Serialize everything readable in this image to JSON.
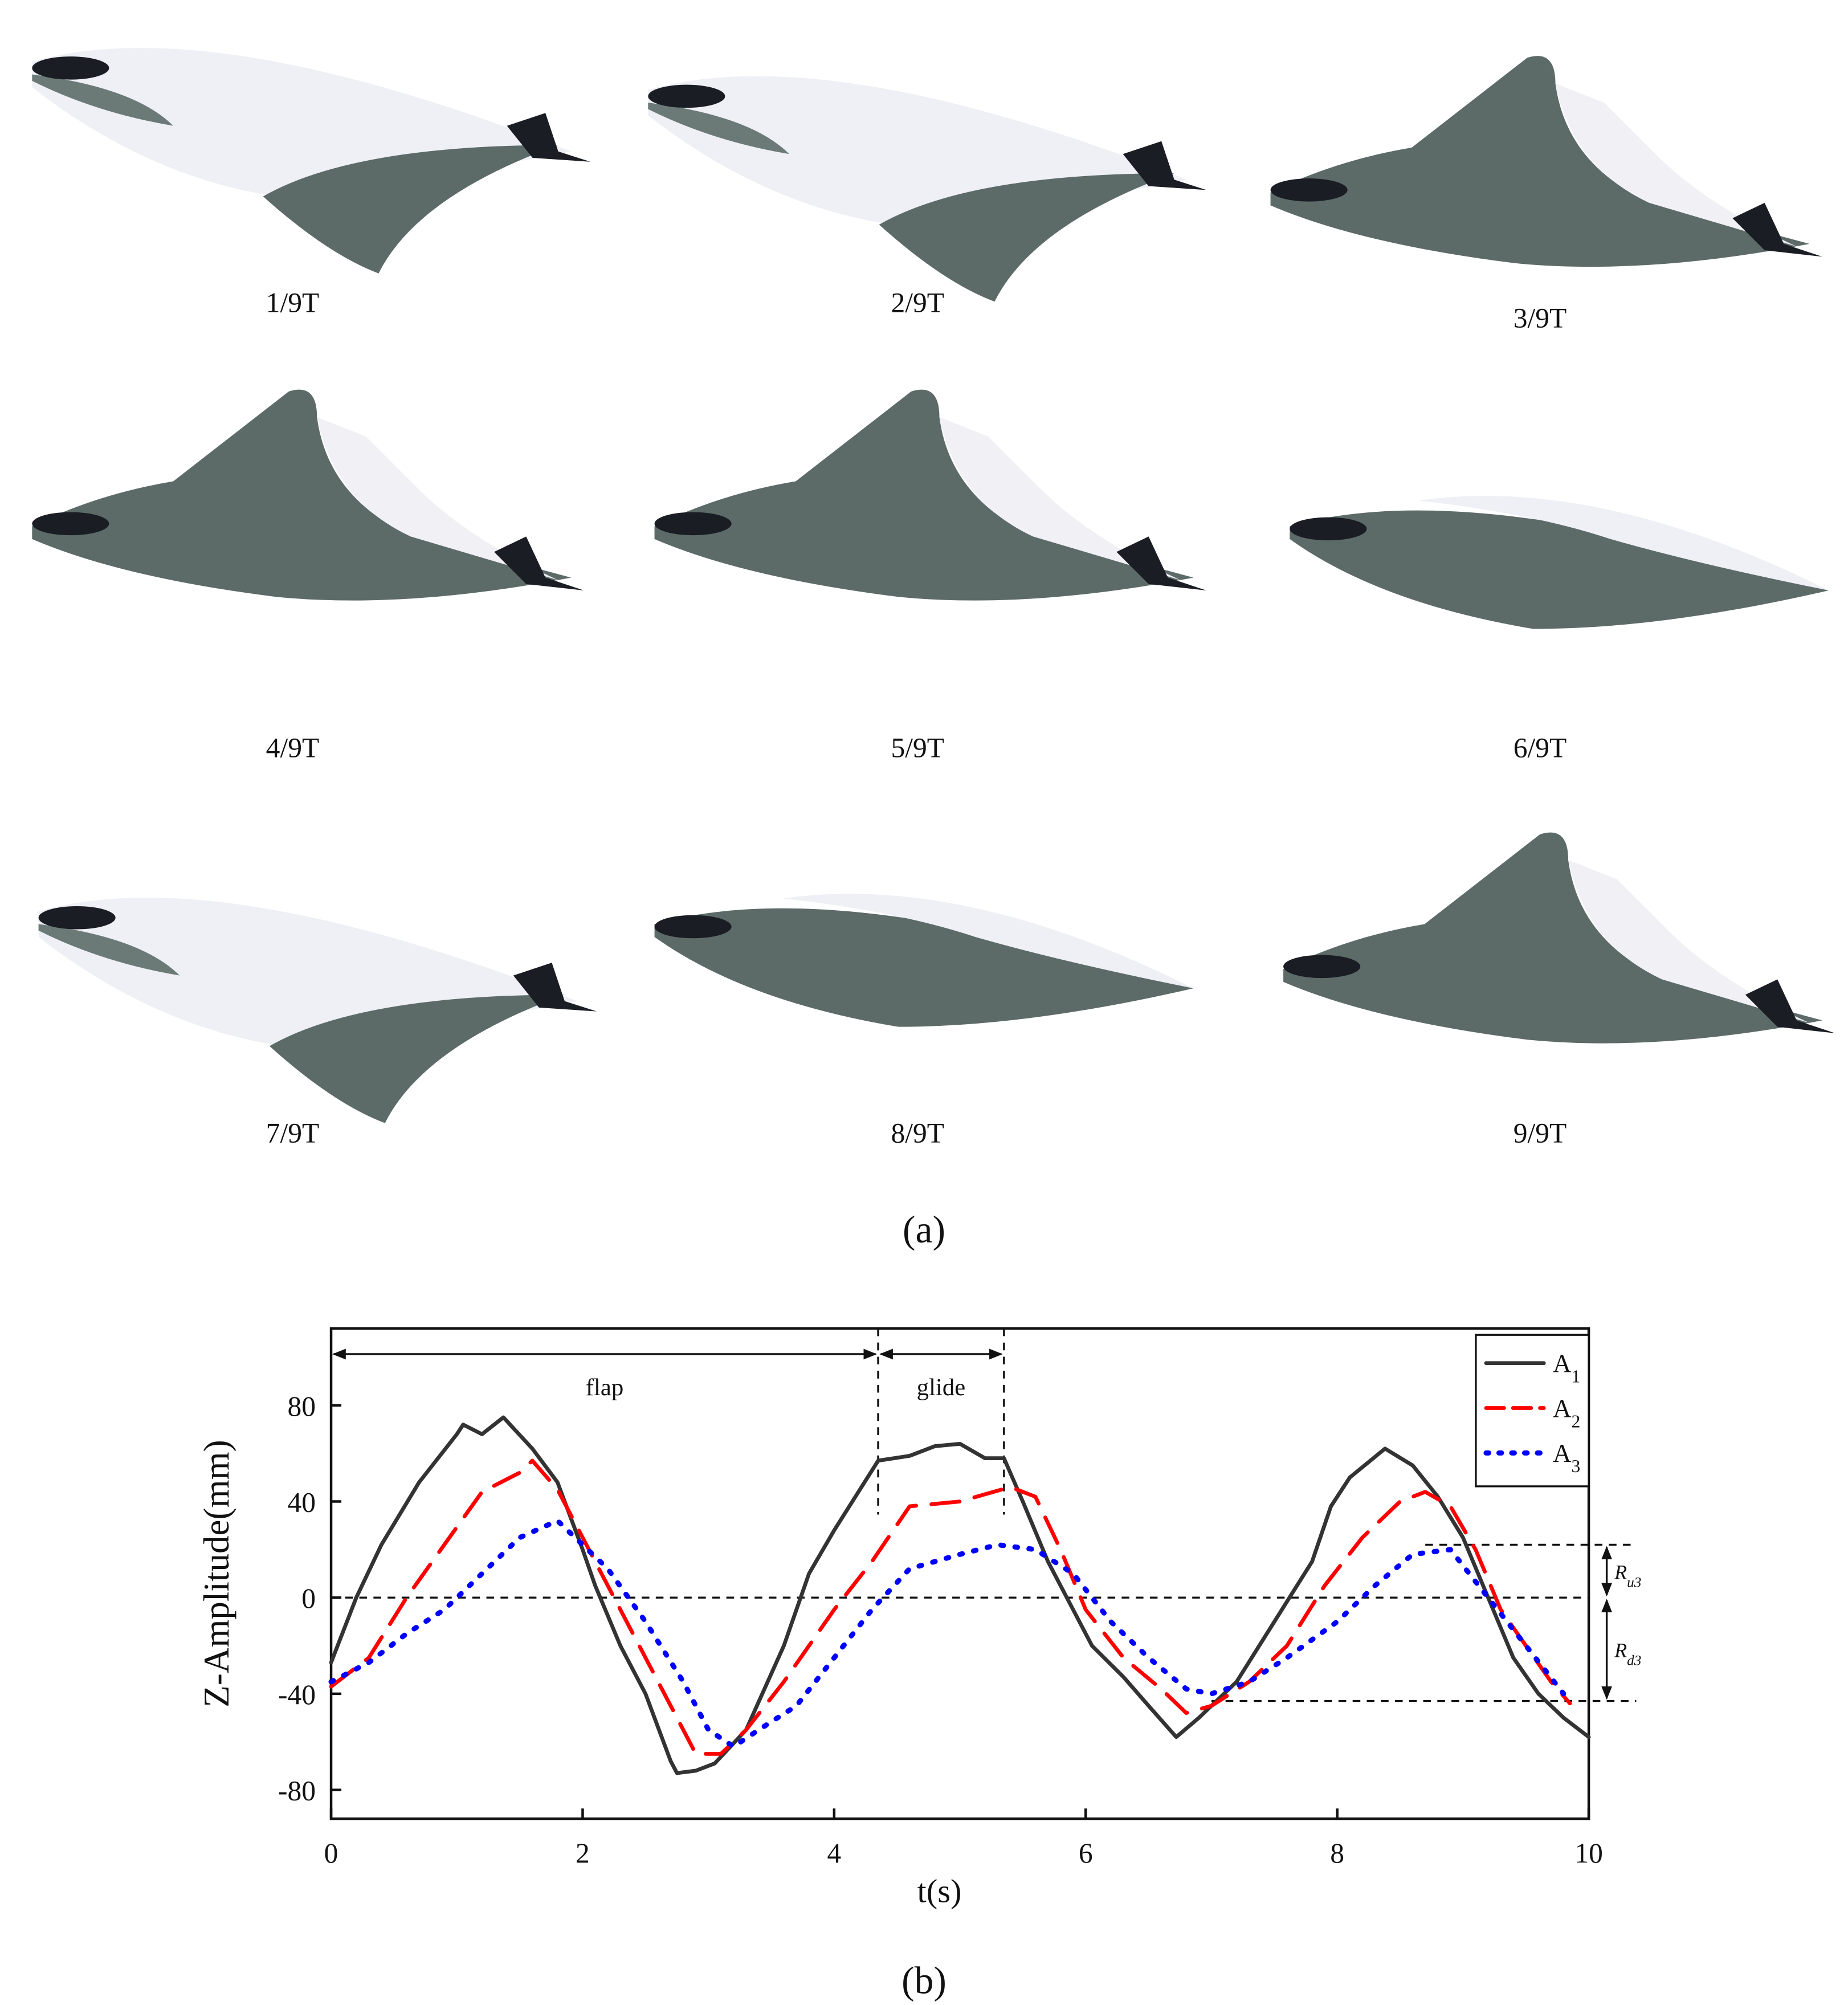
{
  "frames": [
    "1/9T",
    "2/9T",
    "3/9T",
    "4/9T",
    "5/9T",
    "6/9T",
    "7/9T",
    "8/9T",
    "9/9T"
  ],
  "panels": [
    "(a)",
    "(b)"
  ],
  "chart_data": {
    "type": "line",
    "xlabel": "t(s)",
    "ylabel": "Z-Amplitude(mm)",
    "xlim": [
      0,
      10
    ],
    "ylim": [
      -92,
      112
    ],
    "xticks": [
      0,
      2,
      4,
      6,
      8,
      10
    ],
    "yticks": [
      -80,
      -40,
      0,
      40,
      80
    ],
    "legend": "upper right",
    "series": [
      {
        "name": "A1",
        "color": "#333333",
        "dash": "solid",
        "x": [
          0,
          0.2,
          0.4,
          0.7,
          1.0,
          1.05,
          1.2,
          1.37,
          1.6,
          1.8,
          2.0,
          2.1,
          2.3,
          2.5,
          2.7,
          2.75,
          2.9,
          3.05,
          3.3,
          3.6,
          3.8,
          4.0,
          4.35,
          4.6,
          4.8,
          5.0,
          5.2,
          5.35,
          5.5,
          5.7,
          5.9,
          6.05,
          6.3,
          6.5,
          6.72,
          6.9,
          7.2,
          7.5,
          7.8,
          7.95,
          8.1,
          8.38,
          8.6,
          8.8,
          9.0,
          9.2,
          9.4,
          9.6,
          9.8,
          10
        ],
        "values": [
          -27,
          0,
          22,
          48,
          68,
          72,
          68,
          75,
          62,
          48,
          20,
          5,
          -20,
          -40,
          -68,
          -73,
          -72,
          -69,
          -55,
          -20,
          10,
          28,
          57,
          59,
          63,
          64,
          58,
          58,
          40,
          15,
          -5,
          -20,
          -33,
          -45,
          -58,
          -50,
          -35,
          -10,
          15,
          38,
          50,
          62,
          55,
          42,
          25,
          0,
          -25,
          -40,
          -50,
          -58
        ]
      },
      {
        "name": "A2",
        "color": "#ff0000",
        "dash": "dashed",
        "x": [
          0,
          0.3,
          0.6,
          0.9,
          1.2,
          1.5,
          1.6,
          1.8,
          2.0,
          2.2,
          2.4,
          2.6,
          2.8,
          2.9,
          3.1,
          3.3,
          3.6,
          4.0,
          4.3,
          4.6,
          5.0,
          5.4,
          5.6,
          5.8,
          6.0,
          6.3,
          6.6,
          6.8,
          7.0,
          7.3,
          7.6,
          7.9,
          8.2,
          8.5,
          8.7,
          8.9,
          9.1,
          9.3,
          9.5,
          9.7,
          9.85
        ],
        "values": [
          -37,
          -25,
          0,
          22,
          44,
          52,
          57,
          45,
          25,
          5,
          -15,
          -35,
          -55,
          -65,
          -65,
          -55,
          -35,
          -5,
          15,
          38,
          40,
          46,
          42,
          20,
          -5,
          -25,
          -38,
          -48,
          -45,
          -35,
          -20,
          5,
          25,
          40,
          44,
          38,
          20,
          -5,
          -20,
          -35,
          -44
        ]
      },
      {
        "name": "A3",
        "color": "#0000ff",
        "dash": "dotted",
        "x": [
          0,
          0.3,
          0.6,
          0.9,
          1.2,
          1.5,
          1.8,
          2.0,
          2.2,
          2.5,
          2.8,
          3.0,
          3.2,
          3.4,
          3.7,
          4.0,
          4.3,
          4.6,
          5.0,
          5.3,
          5.6,
          5.9,
          6.2,
          6.5,
          6.8,
          7.0,
          7.3,
          7.6,
          8.0,
          8.3,
          8.6,
          8.9,
          9.2,
          9.5,
          9.8
        ],
        "values": [
          -35,
          -27,
          -15,
          -5,
          10,
          25,
          32,
          22,
          12,
          -10,
          -35,
          -55,
          -62,
          -55,
          -45,
          -25,
          -5,
          12,
          18,
          22,
          20,
          10,
          -10,
          -25,
          -38,
          -40,
          -35,
          -25,
          -10,
          5,
          18,
          20,
          0,
          -20,
          -40
        ]
      }
    ],
    "phases": [
      {
        "label": "flap",
        "from": 0,
        "to": 4.35
      },
      {
        "label": "glide",
        "from": 4.35,
        "to": 5.35
      }
    ],
    "reference_lines": [
      {
        "y": 0,
        "x_from": 0
      },
      {
        "y": 22,
        "x_from": 8.7
      },
      {
        "y": -43,
        "x_from": 7.0
      }
    ],
    "ranges": [
      {
        "label": "Ru3",
        "from": 22,
        "to": 0
      },
      {
        "label": "Rd3",
        "from": 0,
        "to": -43
      }
    ]
  }
}
